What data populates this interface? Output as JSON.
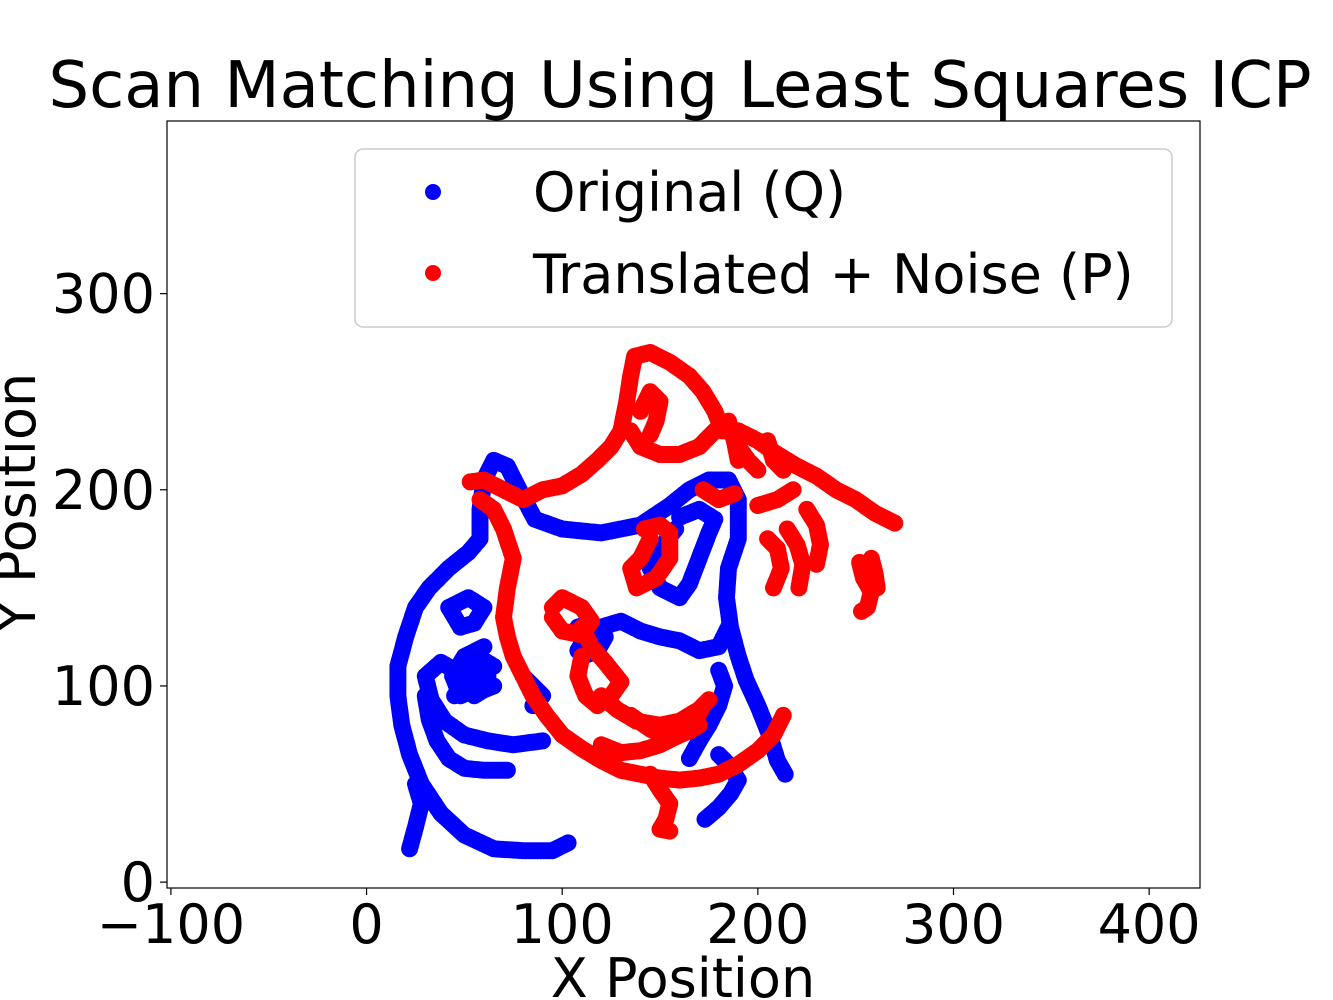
{
  "chart_data": {
    "type": "scatter",
    "title": "Scan Matching Using Least Squares ICP",
    "xlabel": "X Position",
    "ylabel": "Y Position",
    "xlim": [
      -102,
      426
    ],
    "ylim": [
      -3,
      388
    ],
    "xticks": [
      -100,
      0,
      100,
      200,
      300,
      400
    ],
    "yticks": [
      0,
      100,
      200,
      300
    ],
    "xtick_labels": [
      "−100",
      "0",
      "100",
      "200",
      "300",
      "400"
    ],
    "ytick_labels": [
      "0",
      "100",
      "200",
      "300"
    ],
    "grid": false,
    "legend_position": "upper-right",
    "series": [
      {
        "name": "Original (Q)",
        "color": "#0000ff",
        "strokes": [
          [
            [
              103,
              20
            ],
            [
              95,
              16
            ],
            [
              80,
              16
            ],
            [
              65,
              17
            ],
            [
              50,
              24
            ],
            [
              38,
              35
            ],
            [
              28,
              50
            ],
            [
              22,
              65
            ],
            [
              18,
              80
            ],
            [
              16,
              95
            ],
            [
              16,
              110
            ],
            [
              20,
              125
            ],
            [
              25,
              140
            ],
            [
              32,
              150
            ],
            [
              42,
              160
            ],
            [
              52,
              168
            ],
            [
              58,
              175
            ],
            [
              58,
              190
            ],
            [
              60,
              205
            ],
            [
              65,
              215
            ],
            [
              72,
              212
            ],
            [
              78,
              200
            ],
            [
              86,
              185
            ],
            [
              100,
              180
            ],
            [
              120,
              178
            ],
            [
              140,
              182
            ],
            [
              155,
              192
            ],
            [
              165,
              200
            ],
            [
              175,
              205
            ],
            [
              185,
              205
            ],
            [
              190,
              195
            ],
            [
              190,
              175
            ],
            [
              185,
              160
            ],
            [
              184,
              145
            ],
            [
              186,
              130
            ],
            [
              190,
              115
            ],
            [
              194,
              103
            ],
            [
              200,
              90
            ],
            [
              206,
              75
            ],
            [
              210,
              62
            ],
            [
              214,
              55
            ]
          ],
          [
            [
              22,
              17
            ],
            [
              25,
              28
            ],
            [
              28,
              40
            ],
            [
              25,
              50
            ]
          ],
          [
            [
              90,
              72
            ],
            [
              75,
              70
            ],
            [
              62,
              72
            ],
            [
              50,
              75
            ],
            [
              40,
              82
            ],
            [
              33,
              93
            ],
            [
              30,
              105
            ],
            [
              38,
              112
            ],
            [
              45,
              108
            ],
            [
              50,
              100
            ],
            [
              55,
              95
            ],
            [
              60,
              98
            ],
            [
              65,
              100
            ]
          ],
          [
            [
              72,
              57
            ],
            [
              60,
              57
            ],
            [
              50,
              58
            ],
            [
              42,
              63
            ],
            [
              36,
              72
            ],
            [
              32,
              83
            ],
            [
              30,
              95
            ]
          ],
          [
            [
              45,
              95
            ],
            [
              50,
              103
            ],
            [
              55,
              110
            ],
            [
              60,
              113
            ],
            [
              65,
              110
            ]
          ],
          [
            [
              48,
              130
            ],
            [
              42,
              140
            ],
            [
              52,
              145
            ],
            [
              60,
              140
            ],
            [
              55,
              132
            ],
            [
              48,
              130
            ]
          ],
          [
            [
              173,
              32
            ],
            [
              180,
              38
            ],
            [
              186,
              45
            ],
            [
              190,
              52
            ],
            [
              185,
              60
            ],
            [
              180,
              65
            ]
          ],
          [
            [
              165,
              63
            ],
            [
              170,
              72
            ],
            [
              175,
              80
            ],
            [
              180,
              90
            ],
            [
              183,
              100
            ],
            [
              180,
              108
            ]
          ],
          [
            [
              158,
              180
            ],
            [
              150,
              170
            ],
            [
              145,
              160
            ],
            [
              150,
              150
            ],
            [
              160,
              145
            ],
            [
              165,
              152
            ],
            [
              170,
              165
            ],
            [
              175,
              178
            ],
            [
              178,
              185
            ],
            [
              170,
              190
            ],
            [
              160,
              186
            ]
          ],
          [
            [
              185,
              130
            ],
            [
              180,
              120
            ],
            [
              170,
              118
            ],
            [
              160,
              123
            ],
            [
              150,
              125
            ],
            [
              140,
              128
            ],
            [
              130,
              133
            ],
            [
              120,
              130
            ],
            [
              112,
              125
            ],
            [
              108,
              118
            ]
          ],
          [
            [
              108,
              130
            ],
            [
              115,
              132
            ],
            [
              122,
              125
            ],
            [
              118,
              118
            ],
            [
              110,
              115
            ]
          ],
          [
            [
              80,
              105
            ],
            [
              85,
              100
            ],
            [
              90,
              95
            ],
            [
              85,
              90
            ]
          ],
          [
            [
              60,
              120
            ],
            [
              50,
              115
            ],
            [
              44,
              105
            ],
            [
              48,
              95
            ],
            [
              55,
              98
            ],
            [
              62,
              105
            ]
          ]
        ]
      },
      {
        "name": "Translated + Noise (P)",
        "color": "#ff0000",
        "strokes": [
          [
            [
              53,
              204
            ],
            [
              60,
              205
            ],
            [
              70,
              200
            ],
            [
              80,
              195
            ],
            [
              90,
              200
            ],
            [
              100,
              202
            ],
            [
              110,
              208
            ],
            [
              118,
              215
            ],
            [
              125,
              222
            ],
            [
              130,
              230
            ],
            [
              133,
              245
            ],
            [
              135,
              258
            ],
            [
              137,
              268
            ],
            [
              145,
              270
            ],
            [
              155,
              265
            ],
            [
              165,
              258
            ],
            [
              172,
              250
            ],
            [
              178,
              240
            ],
            [
              182,
              230
            ],
            [
              190,
              230
            ],
            [
              200,
              225
            ],
            [
              210,
              218
            ],
            [
              220,
              212
            ],
            [
              230,
              207
            ],
            [
              240,
              200
            ],
            [
              250,
              195
            ],
            [
              260,
              188
            ],
            [
              270,
              183
            ]
          ],
          [
            [
              58,
              195
            ],
            [
              65,
              190
            ],
            [
              70,
              180
            ],
            [
              75,
              165
            ],
            [
              72,
              150
            ],
            [
              70,
              135
            ],
            [
              72,
              125
            ],
            [
              75,
              115
            ],
            [
              80,
              105
            ],
            [
              85,
              95
            ],
            [
              92,
              85
            ],
            [
              100,
              75
            ],
            [
              110,
              68
            ],
            [
              120,
              62
            ],
            [
              130,
              57
            ],
            [
              140,
              55
            ],
            [
              150,
              53
            ],
            [
              160,
              52
            ],
            [
              170,
              53
            ],
            [
              180,
              55
            ],
            [
              190,
              60
            ],
            [
              200,
              67
            ],
            [
              208,
              75
            ],
            [
              213,
              85
            ]
          ],
          [
            [
              135,
              230
            ],
            [
              140,
              222
            ],
            [
              150,
              218
            ],
            [
              160,
              218
            ],
            [
              170,
              222
            ],
            [
              178,
              230
            ],
            [
              185,
              235
            ],
            [
              188,
              225
            ],
            [
              190,
              215
            ]
          ],
          [
            [
              140,
              240
            ],
            [
              145,
              250
            ],
            [
              150,
              245
            ],
            [
              148,
              235
            ],
            [
              145,
              228
            ]
          ],
          [
            [
              145,
              175
            ],
            [
              140,
              165
            ],
            [
              135,
              160
            ],
            [
              138,
              150
            ],
            [
              148,
              155
            ],
            [
              155,
              165
            ],
            [
              155,
              178
            ],
            [
              150,
              182
            ],
            [
              142,
              180
            ]
          ],
          [
            [
              95,
              140
            ],
            [
              100,
              145
            ],
            [
              110,
              140
            ],
            [
              115,
              133
            ],
            [
              110,
              126
            ],
            [
              100,
              128
            ],
            [
              95,
              135
            ]
          ],
          [
            [
              110,
              130
            ],
            [
              115,
              120
            ],
            [
              122,
              112
            ],
            [
              130,
              102
            ],
            [
              125,
              95
            ],
            [
              118,
              90
            ],
            [
              112,
              95
            ],
            [
              108,
              105
            ],
            [
              110,
              115
            ]
          ],
          [
            [
              120,
              95
            ],
            [
              128,
              88
            ],
            [
              138,
              82
            ],
            [
              150,
              80
            ],
            [
              160,
              82
            ],
            [
              170,
              88
            ],
            [
              175,
              93
            ]
          ],
          [
            [
              135,
              85
            ],
            [
              145,
              78
            ],
            [
              155,
              73
            ],
            [
              165,
              77
            ],
            [
              170,
              80
            ]
          ],
          [
            [
              120,
              70
            ],
            [
              130,
              66
            ],
            [
              140,
              67
            ],
            [
              150,
              70
            ],
            [
              160,
              75
            ],
            [
              168,
              82
            ],
            [
              172,
              90
            ]
          ],
          [
            [
              145,
              55
            ],
            [
              150,
              47
            ],
            [
              155,
              40
            ],
            [
              153,
              32
            ],
            [
              150,
              27
            ],
            [
              155,
              26
            ]
          ],
          [
            [
              200,
              192
            ],
            [
              210,
              195
            ],
            [
              218,
              200
            ]
          ],
          [
            [
              205,
              225
            ],
            [
              208,
              215
            ],
            [
              213,
              210
            ]
          ],
          [
            [
              205,
              175
            ],
            [
              210,
              170
            ],
            [
              212,
              160
            ],
            [
              208,
              150
            ]
          ],
          [
            [
              215,
              180
            ],
            [
              220,
              172
            ],
            [
              223,
              162
            ],
            [
              221,
              150
            ]
          ],
          [
            [
              225,
              190
            ],
            [
              230,
              182
            ],
            [
              232,
              172
            ],
            [
              230,
              162
            ]
          ],
          [
            [
              252,
              163
            ],
            [
              254,
              155
            ],
            [
              258,
              148
            ],
            [
              256,
              140
            ],
            [
              253,
              138
            ]
          ],
          [
            [
              258,
              165
            ],
            [
              260,
              157
            ],
            [
              261,
              150
            ]
          ],
          [
            [
              172,
              200
            ],
            [
              180,
              195
            ],
            [
              188,
              198
            ]
          ],
          [
            [
              188,
              225
            ],
            [
              195,
              215
            ],
            [
              200,
              210
            ]
          ]
        ]
      }
    ]
  }
}
